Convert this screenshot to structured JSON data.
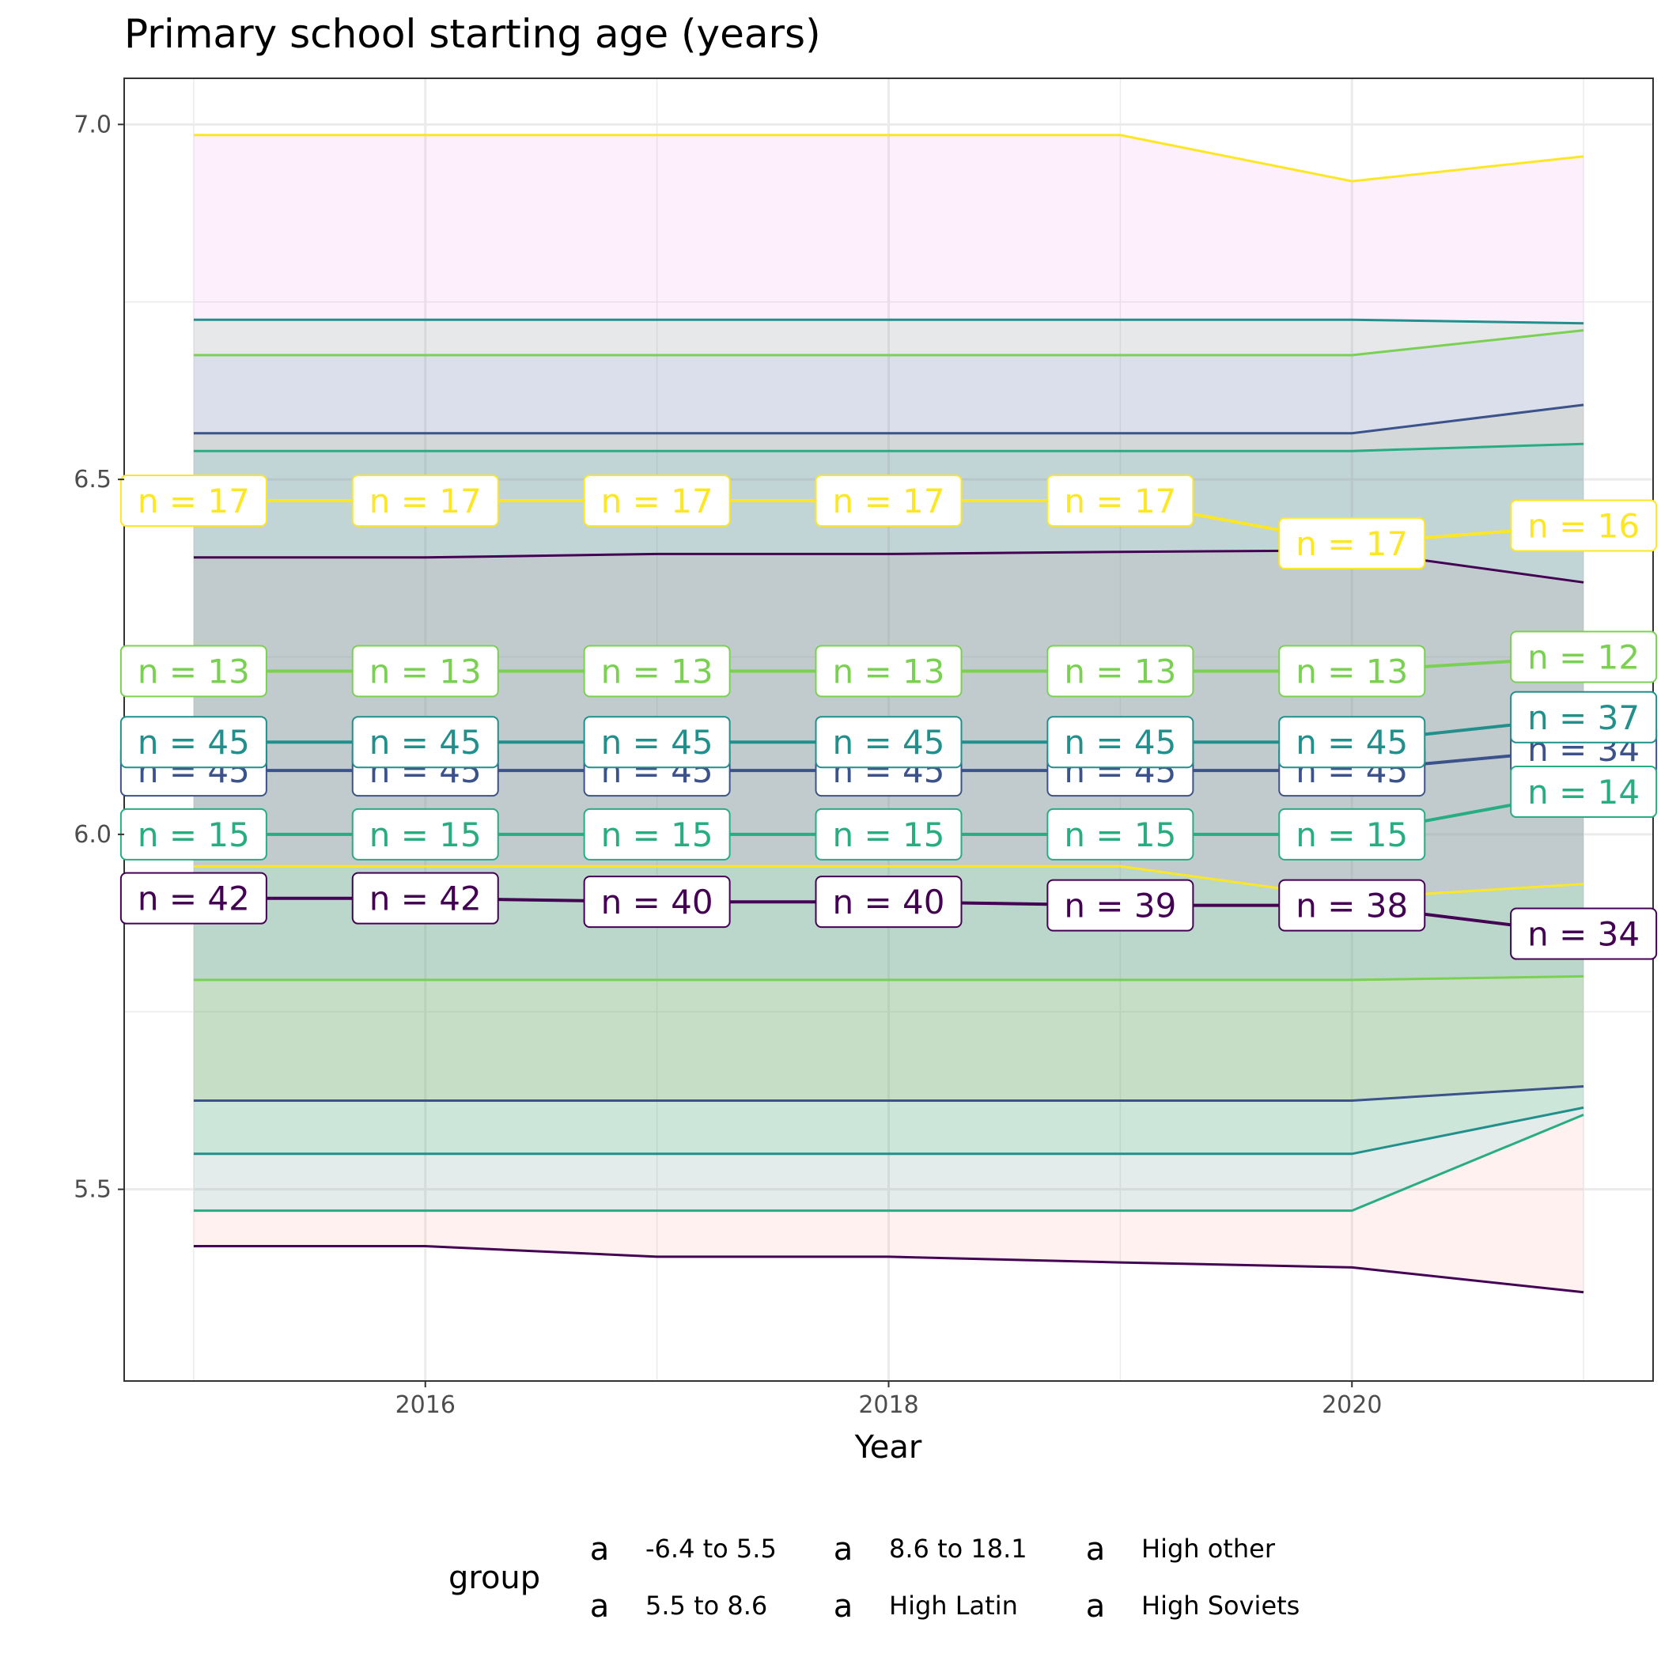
{
  "chart_data": {
    "type": "line",
    "title": "Primary school starting age (years)",
    "xlabel": "Year",
    "ylabel": "",
    "x": [
      2015,
      2016,
      2017,
      2018,
      2019,
      2020,
      2021
    ],
    "xlim": [
      2014.7,
      2021.3
    ],
    "ylim": [
      5.23,
      7.065
    ],
    "x_ticks": [
      2016,
      2018,
      2020
    ],
    "x_tick_labels": [
      "2016",
      "2018",
      "2020"
    ],
    "y_ticks": [
      5.5,
      6.0,
      6.5,
      7.0
    ],
    "y_tick_labels": [
      "5.5",
      "6.0",
      "6.5",
      "7.0"
    ],
    "grid": true,
    "legend_title": "group",
    "legend_position": "bottom",
    "legend_key_glyph": "a",
    "series": [
      {
        "name": "-6.4 to 5.5",
        "color": "#440154",
        "fill": "#f8766d",
        "mean": [
          5.91,
          5.91,
          5.905,
          5.905,
          5.9,
          5.9,
          5.86
        ],
        "upper": [
          6.39,
          6.39,
          6.395,
          6.395,
          6.398,
          6.4,
          6.355
        ],
        "lower": [
          5.42,
          5.42,
          5.405,
          5.405,
          5.397,
          5.39,
          5.355
        ],
        "labels": [
          "n = 42",
          "n = 42",
          "n = 40",
          "n = 40",
          "n = 39",
          "n = 38",
          "n = 34"
        ]
      },
      {
        "name": "5.5 to 8.6",
        "color": "#3b528b",
        "fill": "#b79f00",
        "mean": [
          6.09,
          6.09,
          6.09,
          6.09,
          6.09,
          6.09,
          6.12
        ],
        "upper": [
          6.565,
          6.565,
          6.565,
          6.565,
          6.565,
          6.565,
          6.605
        ],
        "lower": [
          5.625,
          5.625,
          5.625,
          5.625,
          5.625,
          5.625,
          5.645
        ],
        "labels": [
          "n = 45",
          "n = 45",
          "n = 45",
          "n = 45",
          "n = 45",
          "n = 45",
          "n = 34"
        ]
      },
      {
        "name": "8.6 to 18.1",
        "color": "#21908c",
        "fill": "#00ba38",
        "mean": [
          6.13,
          6.13,
          6.13,
          6.13,
          6.13,
          6.13,
          6.165
        ],
        "upper": [
          6.725,
          6.725,
          6.725,
          6.725,
          6.725,
          6.725,
          6.72
        ],
        "lower": [
          5.55,
          5.55,
          5.55,
          5.55,
          5.55,
          5.55,
          5.615
        ],
        "labels": [
          "n = 45",
          "n = 45",
          "n = 45",
          "n = 45",
          "n = 45",
          "n = 45",
          "n = 37"
        ]
      },
      {
        "name": "High Latin",
        "color": "#27ad81",
        "fill": "#00bfc4",
        "mean": [
          6.0,
          6.0,
          6.0,
          6.0,
          6.0,
          6.0,
          6.06
        ],
        "upper": [
          6.54,
          6.54,
          6.54,
          6.54,
          6.54,
          6.54,
          6.55
        ],
        "lower": [
          5.47,
          5.47,
          5.47,
          5.47,
          5.47,
          5.47,
          5.605
        ],
        "labels": [
          "n = 15",
          "n = 15",
          "n = 15",
          "n = 15",
          "n = 15",
          "n = 15",
          "n = 14"
        ]
      },
      {
        "name": "High other",
        "color": "#7ad151",
        "fill": "#619cff",
        "mean": [
          6.23,
          6.23,
          6.23,
          6.23,
          6.23,
          6.23,
          6.25
        ],
        "upper": [
          6.675,
          6.675,
          6.675,
          6.675,
          6.675,
          6.675,
          6.71
        ],
        "lower": [
          5.795,
          5.795,
          5.795,
          5.795,
          5.795,
          5.795,
          5.8
        ],
        "labels": [
          "n = 13",
          "n = 13",
          "n = 13",
          "n = 13",
          "n = 13",
          "n = 13",
          "n = 12"
        ]
      },
      {
        "name": "High Soviets",
        "color": "#fde725",
        "fill": "#f564e3",
        "mean": [
          6.47,
          6.47,
          6.47,
          6.47,
          6.47,
          6.41,
          6.435
        ],
        "upper": [
          6.985,
          6.985,
          6.985,
          6.985,
          6.985,
          6.92,
          6.955
        ],
        "lower": [
          5.955,
          5.955,
          5.955,
          5.955,
          5.955,
          5.91,
          5.93
        ],
        "labels": [
          "n = 17",
          "n = 17",
          "n = 17",
          "n = 17",
          "n = 17",
          "n = 17",
          "n = 16"
        ]
      }
    ]
  }
}
